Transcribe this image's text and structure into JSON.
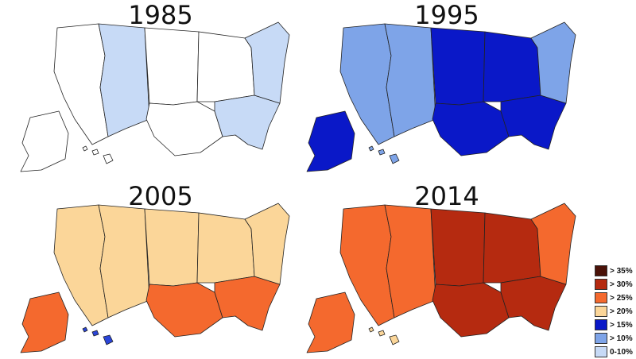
{
  "maps": [
    {
      "year": "1985",
      "colors": {
        "west": "#ffffff",
        "mountain": "#c7daf6",
        "plains": "#ffffff",
        "midwest": "#ffffff",
        "south": "#ffffff",
        "southeast": "#c7daf6",
        "northeast": "#c7daf6",
        "alaska": "#ffffff",
        "hawaii": "#ffffff"
      }
    },
    {
      "year": "1995",
      "colors": {
        "west": "#7ea4e8",
        "mountain": "#7ea4e8",
        "plains": "#0a18c8",
        "midwest": "#0a18c8",
        "south": "#0a18c8",
        "southeast": "#0a18c8",
        "northeast": "#7ea4e8",
        "alaska": "#0a18c8",
        "hawaii": "#7ea4e8"
      }
    },
    {
      "year": "2005",
      "colors": {
        "west": "#fbd699",
        "mountain": "#fbd699",
        "plains": "#fbd699",
        "midwest": "#fbd699",
        "south": "#f4692e",
        "southeast": "#f4692e",
        "northeast": "#fbd699",
        "alaska": "#f4692e",
        "hawaii": "#2a45d8"
      }
    },
    {
      "year": "2014",
      "colors": {
        "west": "#f4692e",
        "mountain": "#f4692e",
        "plains": "#b52a10",
        "midwest": "#b52a10",
        "south": "#b52a10",
        "southeast": "#b52a10",
        "northeast": "#f4692e",
        "alaska": "#f4692e",
        "hawaii": "#fbd699"
      }
    }
  ],
  "legend": [
    {
      "label": "> 35%",
      "color": "#4a1208"
    },
    {
      "label": "> 30%",
      "color": "#b52a10"
    },
    {
      "label": "> 25%",
      "color": "#f4692e"
    },
    {
      "label": "> 20%",
      "color": "#fbd699"
    },
    {
      "label": "> 15%",
      "color": "#0a18c8"
    },
    {
      "label": "> 10%",
      "color": "#7ea4e8"
    },
    {
      "label": "0-10%",
      "color": "#c7daf6"
    }
  ]
}
